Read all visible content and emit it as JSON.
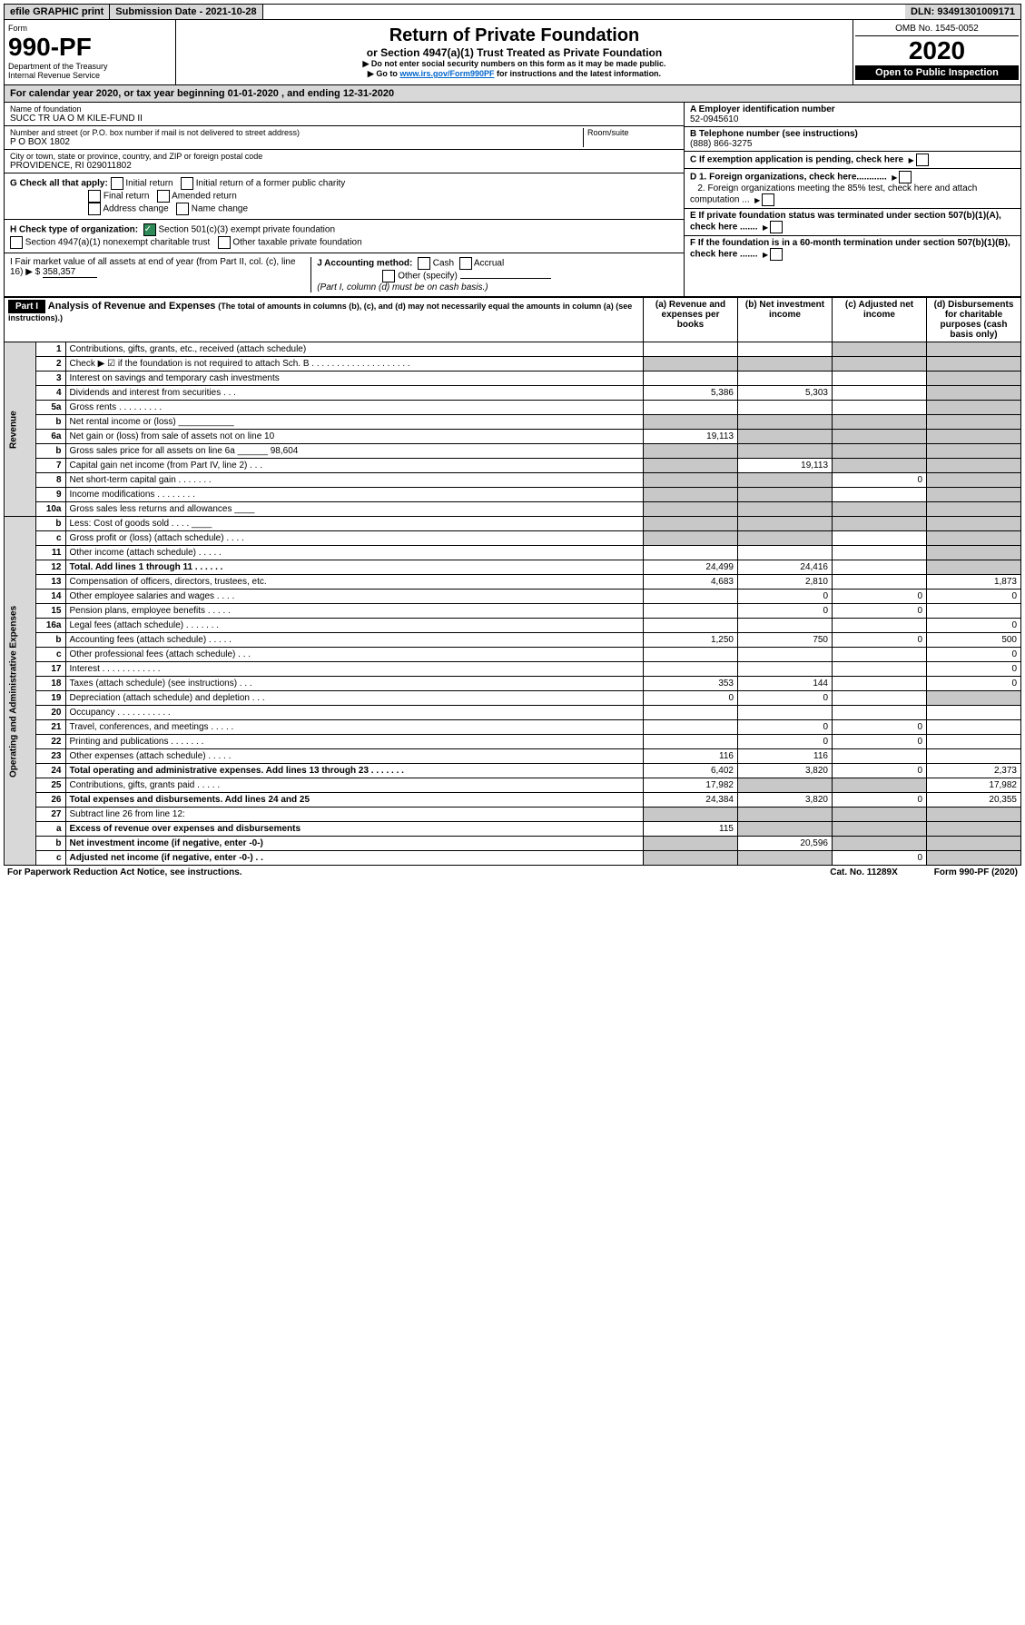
{
  "topbar": {
    "efile": "efile GRAPHIC print",
    "submission": "Submission Date - 2021-10-28",
    "dln": "DLN: 93491301009171"
  },
  "header": {
    "form_label": "Form",
    "form_number": "990-PF",
    "dept": "Department of the Treasury",
    "irs": "Internal Revenue Service",
    "title": "Return of Private Foundation",
    "subtitle": "or Section 4947(a)(1) Trust Treated as Private Foundation",
    "note1": "▶ Do not enter social security numbers on this form as it may be made public.",
    "note2_pre": "▶ Go to ",
    "note2_link": "www.irs.gov/Form990PF",
    "note2_post": " for instructions and the latest information.",
    "omb": "OMB No. 1545-0052",
    "year": "2020",
    "inspection": "Open to Public Inspection"
  },
  "cal_year": {
    "prefix": "For calendar year 2020, or tax year beginning ",
    "begin": "01-01-2020",
    "mid": " , and ending ",
    "end": "12-31-2020"
  },
  "entity": {
    "name_label": "Name of foundation",
    "name": "SUCC TR UA O M KILE-FUND II",
    "addr_label": "Number and street (or P.O. box number if mail is not delivered to street address)",
    "addr": "P O BOX 1802",
    "room_label": "Room/suite",
    "city_label": "City or town, state or province, country, and ZIP or foreign postal code",
    "city": "PROVIDENCE, RI  029011802",
    "ein_label": "A Employer identification number",
    "ein": "52-0945610",
    "tel_label": "B Telephone number (see instructions)",
    "tel": "(888) 866-3275",
    "c_label": "C If exemption application is pending, check here",
    "d1": "D 1. Foreign organizations, check here............",
    "d2": "2. Foreign organizations meeting the 85% test, check here and attach computation ...",
    "e_label": "E  If private foundation status was terminated under section 507(b)(1)(A), check here .......",
    "f_label": "F  If the foundation is in a 60-month termination under section 507(b)(1)(B), check here .......",
    "g_label": "G Check all that apply:",
    "g_opts": [
      "Initial return",
      "Initial return of a former public charity",
      "Final return",
      "Amended return",
      "Address change",
      "Name change"
    ],
    "h_label": "H Check type of organization:",
    "h1": "Section 501(c)(3) exempt private foundation",
    "h2": "Section 4947(a)(1) nonexempt charitable trust",
    "h3": "Other taxable private foundation",
    "i_label": "I Fair market value of all assets at end of year (from Part II, col. (c), line 16) ▶ $",
    "i_val": "358,357",
    "j_label": "J Accounting method:",
    "j_cash": "Cash",
    "j_accrual": "Accrual",
    "j_other": "Other (specify)",
    "j_note": "(Part I, column (d) must be on cash basis.)"
  },
  "part1": {
    "label": "Part I",
    "title": "Analysis of Revenue and Expenses",
    "title_note": "(The total of amounts in columns (b), (c), and (d) may not necessarily equal the amounts in column (a) (see instructions).)",
    "col_a": "(a) Revenue and expenses per books",
    "col_b": "(b) Net investment income",
    "col_c": "(c) Adjusted net income",
    "col_d": "(d) Disbursements for charitable purposes (cash basis only)",
    "revenue_label": "Revenue",
    "expenses_label": "Operating and Administrative Expenses"
  },
  "lines": [
    {
      "n": "1",
      "desc": "Contributions, gifts, grants, etc., received (attach schedule)",
      "a": "",
      "b": "",
      "c": "",
      "d": "",
      "shade_cd": true
    },
    {
      "n": "2",
      "desc": "Check ▶ ☑ if the foundation is not required to attach Sch. B . . . . . . . . . . . . . . . . . . . .",
      "a": "",
      "b": "",
      "c": "",
      "d": "",
      "shade_all": true
    },
    {
      "n": "3",
      "desc": "Interest on savings and temporary cash investments",
      "a": "",
      "b": "",
      "c": "",
      "d": "",
      "shade_d": true
    },
    {
      "n": "4",
      "desc": "Dividends and interest from securities   .   .   .",
      "a": "5,386",
      "b": "5,303",
      "c": "",
      "d": "",
      "shade_d": true
    },
    {
      "n": "5a",
      "desc": "Gross rents   .   .   .   .   .   .   .   .   .",
      "a": "",
      "b": "",
      "c": "",
      "d": "",
      "shade_d": true
    },
    {
      "n": "b",
      "desc": "Net rental income or (loss)  ___________",
      "a": "",
      "b": "",
      "c": "",
      "d": "",
      "shade_all": true
    },
    {
      "n": "6a",
      "desc": "Net gain or (loss) from sale of assets not on line 10",
      "a": "19,113",
      "b": "",
      "c": "",
      "d": "",
      "shade_bcd": true
    },
    {
      "n": "b",
      "desc": "Gross sales price for all assets on line 6a ______ 98,604",
      "a": "",
      "b": "",
      "c": "",
      "d": "",
      "shade_all": true
    },
    {
      "n": "7",
      "desc": "Capital gain net income (from Part IV, line 2)   .   .   .",
      "a": "",
      "b": "19,113",
      "c": "",
      "d": "",
      "shade_acd": true
    },
    {
      "n": "8",
      "desc": "Net short-term capital gain   .   .   .   .   .   .   .",
      "a": "",
      "b": "",
      "c": "0",
      "d": "",
      "shade_abd": true
    },
    {
      "n": "9",
      "desc": "Income modifications   .   .   .   .   .   .   .   .",
      "a": "",
      "b": "",
      "c": "",
      "d": "",
      "shade_abd": true
    },
    {
      "n": "10a",
      "desc": "Gross sales less returns and allowances  ____",
      "a": "",
      "b": "",
      "c": "",
      "d": "",
      "shade_all": true
    },
    {
      "n": "b",
      "desc": "Less: Cost of goods sold   .   .   .   .  ____",
      "a": "",
      "b": "",
      "c": "",
      "d": "",
      "shade_all": true
    },
    {
      "n": "c",
      "desc": "Gross profit or (loss) (attach schedule)   .   .   .   .",
      "a": "",
      "b": "",
      "c": "",
      "d": "",
      "shade_abd": true
    },
    {
      "n": "11",
      "desc": "Other income (attach schedule)   .   .   .   .   .",
      "a": "",
      "b": "",
      "c": "",
      "d": "",
      "shade_d": true
    },
    {
      "n": "12",
      "desc": "Total. Add lines 1 through 11   .   .   .   .   .   .",
      "a": "24,499",
      "b": "24,416",
      "c": "",
      "d": "",
      "bold": true,
      "shade_d": true
    },
    {
      "n": "13",
      "desc": "Compensation of officers, directors, trustees, etc.",
      "a": "4,683",
      "b": "2,810",
      "c": "",
      "d": "1,873"
    },
    {
      "n": "14",
      "desc": "Other employee salaries and wages   .   .   .   .",
      "a": "",
      "b": "0",
      "c": "0",
      "d": "0"
    },
    {
      "n": "15",
      "desc": "Pension plans, employee benefits   .   .   .   .   .",
      "a": "",
      "b": "0",
      "c": "0",
      "d": ""
    },
    {
      "n": "16a",
      "desc": "Legal fees (attach schedule)   .   .   .   .   .   .   .",
      "a": "",
      "b": "",
      "c": "",
      "d": "0"
    },
    {
      "n": "b",
      "desc": "Accounting fees (attach schedule)   .   .   .   .   .",
      "a": "1,250",
      "b": "750",
      "c": "0",
      "d": "500"
    },
    {
      "n": "c",
      "desc": "Other professional fees (attach schedule)   .   .   .",
      "a": "",
      "b": "",
      "c": "",
      "d": "0"
    },
    {
      "n": "17",
      "desc": "Interest   .   .   .   .   .   .   .   .   .   .   .   .",
      "a": "",
      "b": "",
      "c": "",
      "d": "0"
    },
    {
      "n": "18",
      "desc": "Taxes (attach schedule) (see instructions)   .   .   .",
      "a": "353",
      "b": "144",
      "c": "",
      "d": "0"
    },
    {
      "n": "19",
      "desc": "Depreciation (attach schedule) and depletion   .   .   .",
      "a": "0",
      "b": "0",
      "c": "",
      "d": "",
      "shade_d": true
    },
    {
      "n": "20",
      "desc": "Occupancy   .   .   .   .   .   .   .   .   .   .   .",
      "a": "",
      "b": "",
      "c": "",
      "d": ""
    },
    {
      "n": "21",
      "desc": "Travel, conferences, and meetings   .   .   .   .   .",
      "a": "",
      "b": "0",
      "c": "0",
      "d": ""
    },
    {
      "n": "22",
      "desc": "Printing and publications   .   .   .   .   .   .   .",
      "a": "",
      "b": "0",
      "c": "0",
      "d": ""
    },
    {
      "n": "23",
      "desc": "Other expenses (attach schedule)   .   .   .   .   .",
      "a": "116",
      "b": "116",
      "c": "",
      "d": ""
    },
    {
      "n": "24",
      "desc": "Total operating and administrative expenses. Add lines 13 through 23   .   .   .   .   .   .   .",
      "a": "6,402",
      "b": "3,820",
      "c": "0",
      "d": "2,373",
      "bold": true
    },
    {
      "n": "25",
      "desc": "Contributions, gifts, grants paid   .   .   .   .   .",
      "a": "17,982",
      "b": "",
      "c": "",
      "d": "17,982",
      "shade_bc": true
    },
    {
      "n": "26",
      "desc": "Total expenses and disbursements. Add lines 24 and 25",
      "a": "24,384",
      "b": "3,820",
      "c": "0",
      "d": "20,355",
      "bold": true
    },
    {
      "n": "27",
      "desc": "Subtract line 26 from line 12:",
      "a": "",
      "b": "",
      "c": "",
      "d": "",
      "shade_all": true
    },
    {
      "n": "a",
      "desc": "Excess of revenue over expenses and disbursements",
      "a": "115",
      "b": "",
      "c": "",
      "d": "",
      "bold": true,
      "shade_bcd": true
    },
    {
      "n": "b",
      "desc": "Net investment income (if negative, enter -0-)",
      "a": "",
      "b": "20,596",
      "c": "",
      "d": "",
      "bold": true,
      "shade_acd": true
    },
    {
      "n": "c",
      "desc": "Adjusted net income (if negative, enter -0-)   .   .",
      "a": "",
      "b": "",
      "c": "0",
      "d": "",
      "bold": true,
      "shade_abd": true
    }
  ],
  "footer": {
    "left": "For Paperwork Reduction Act Notice, see instructions.",
    "mid": "Cat. No. 11289X",
    "right": "Form 990-PF (2020)"
  }
}
